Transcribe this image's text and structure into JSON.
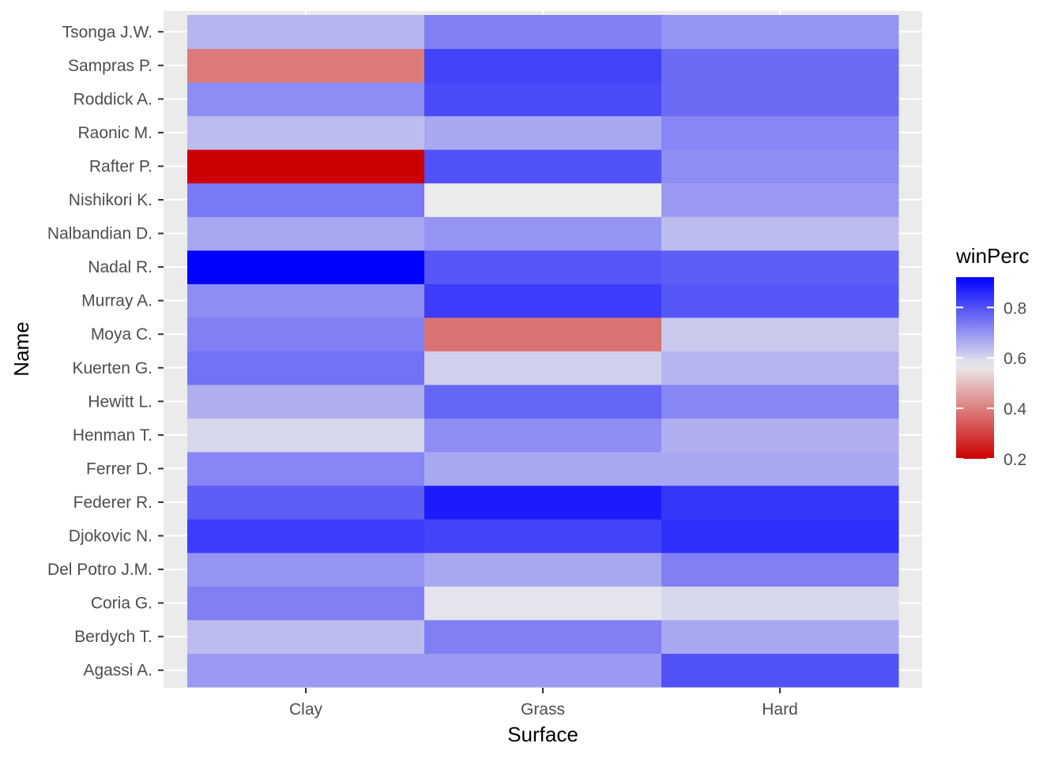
{
  "chart_data": {
    "type": "heatmap",
    "xlabel": "Surface",
    "ylabel": "Name",
    "x_categories": [
      "Clay",
      "Grass",
      "Hard"
    ],
    "y_categories": [
      "Agassi A.",
      "Berdych T.",
      "Coria G.",
      "Del Potro J.M.",
      "Djokovic N.",
      "Federer R.",
      "Ferrer D.",
      "Henman T.",
      "Hewitt L.",
      "Kuerten G.",
      "Moya C.",
      "Murray A.",
      "Nadal R.",
      "Nalbandian D.",
      "Nishikori K.",
      "Rafter P.",
      "Raonic M.",
      "Roddick A.",
      "Sampras P.",
      "Tsonga J.W."
    ],
    "values": [
      [
        0.69,
        0.69,
        0.8
      ],
      [
        0.64,
        0.73,
        0.67
      ],
      [
        0.73,
        0.58,
        0.6
      ],
      [
        0.7,
        0.67,
        0.73
      ],
      [
        0.83,
        0.82,
        0.85
      ],
      [
        0.78,
        0.88,
        0.84
      ],
      [
        0.72,
        0.67,
        0.67
      ],
      [
        0.6,
        0.71,
        0.66
      ],
      [
        0.66,
        0.77,
        0.72
      ],
      [
        0.75,
        0.61,
        0.65
      ],
      [
        0.73,
        0.38,
        0.62
      ],
      [
        0.71,
        0.83,
        0.79
      ],
      [
        0.92,
        0.79,
        0.78
      ],
      [
        0.67,
        0.7,
        0.64
      ],
      [
        0.74,
        0.57,
        0.69
      ],
      [
        0.2,
        0.8,
        0.71
      ],
      [
        0.64,
        0.67,
        0.72
      ],
      [
        0.71,
        0.81,
        0.76
      ],
      [
        0.39,
        0.82,
        0.76
      ],
      [
        0.65,
        0.73,
        0.7
      ]
    ],
    "color_scale": {
      "low": "#cc0000",
      "mid": "#ebebeb",
      "high": "#0000ff",
      "midpoint": 0.57,
      "limits": [
        0.2,
        0.92
      ]
    },
    "legend": {
      "title": "winPerc",
      "ticks": [
        0.8,
        0.6,
        0.4,
        0.2
      ],
      "placement": "right"
    },
    "panel_background": "#ebebeb",
    "grid": true
  }
}
